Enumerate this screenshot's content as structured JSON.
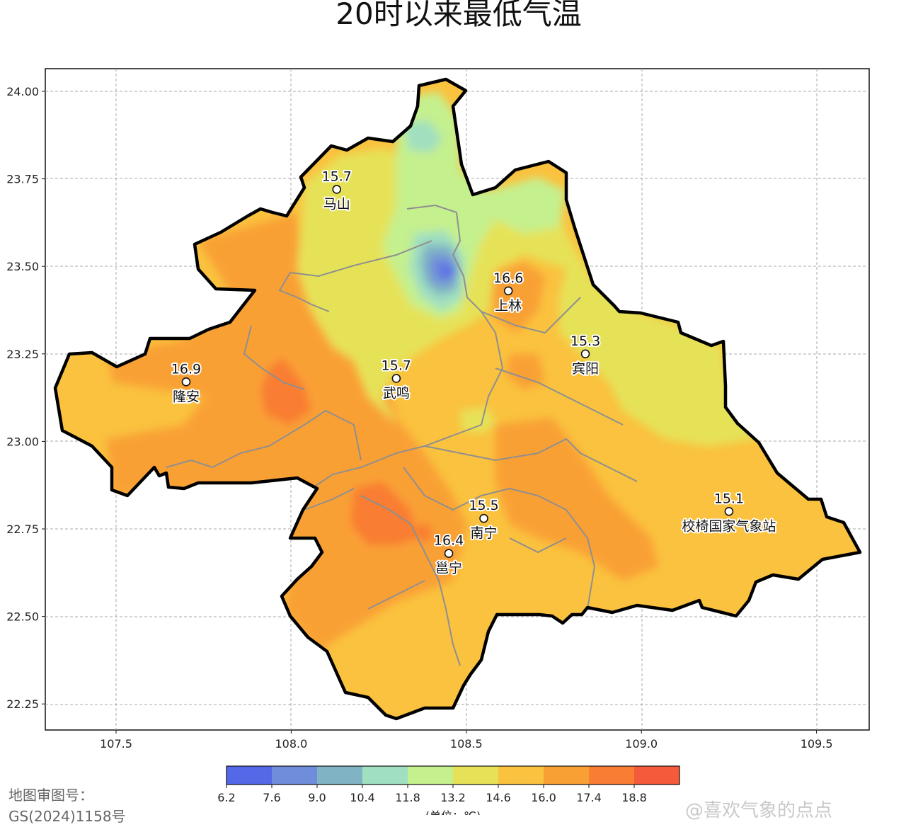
{
  "title": "20时以来最低气温",
  "map": {
    "x_axis_ticks": [
      "107.5",
      "108.0",
      "108.5",
      "109.0",
      "109.5"
    ],
    "y_axis_ticks": [
      "24.00",
      "23.75",
      "23.50",
      "23.25",
      "23.00",
      "22.75",
      "22.50",
      "22.25"
    ],
    "grid": true
  },
  "stations": [
    {
      "name": "马山",
      "value": "15.7",
      "lon": 108.13,
      "lat": 23.72
    },
    {
      "name": "上林",
      "value": "16.6",
      "lon": 108.62,
      "lat": 23.43
    },
    {
      "name": "宾阳",
      "value": "15.3",
      "lon": 108.84,
      "lat": 23.25
    },
    {
      "name": "隆安",
      "value": "16.9",
      "lon": 107.7,
      "lat": 23.17
    },
    {
      "name": "武鸣",
      "value": "15.7",
      "lon": 108.3,
      "lat": 23.18
    },
    {
      "name": "南宁",
      "value": "15.5",
      "lon": 108.55,
      "lat": 22.78
    },
    {
      "name": "邕宁",
      "value": "16.4",
      "lon": 108.45,
      "lat": 22.68
    },
    {
      "name": "校椅国家气象站",
      "value": "15.1",
      "lon": 109.25,
      "lat": 22.8
    }
  ],
  "colorbar": {
    "ticks": [
      "6.2",
      "7.6",
      "9.0",
      "10.4",
      "11.8",
      "13.2",
      "14.6",
      "16.0",
      "17.4",
      "18.8"
    ],
    "colors": [
      "#5568e8",
      "#6f8ddb",
      "#80b3c4",
      "#a0dfc0",
      "#c5f08e",
      "#e6e258",
      "#fac23e",
      "#f9a035",
      "#f97d32",
      "#f55a3a"
    ],
    "unit_label": "(单位：℃)"
  },
  "approval": {
    "line1": "地图审图号：",
    "line2": "GS(2024)1158号"
  },
  "watermark": "@喜欢气象的点点"
}
